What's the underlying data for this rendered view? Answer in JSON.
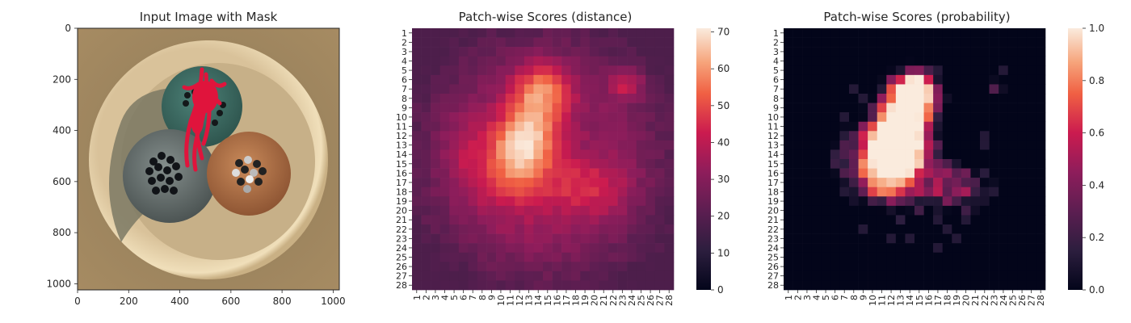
{
  "figure": {
    "panel1_title": "Input Image with Mask",
    "panel2_title": "Patch-wise Scores (distance)",
    "panel3_title": "Patch-wise Scores (probability)"
  },
  "chart_data": [
    {
      "type": "image",
      "title": "Input Image with Mask",
      "xlim": [
        0,
        1024
      ],
      "ylim": [
        1024,
        0
      ],
      "x_ticks": [
        "0",
        "200",
        "400",
        "600",
        "800",
        "1000"
      ],
      "y_ticks": [
        "0",
        "200",
        "400",
        "600",
        "800",
        "1000"
      ],
      "content": "cable cross-section with three wire bundles; red mask over top bundle",
      "colors": {
        "background": "#9c8460",
        "ring_outer": "#ead7b0",
        "ring_shadow": "#7b7964",
        "green_core": "#3f6f66",
        "gray_core": "#6f7a7a",
        "orange_core": "#b8784c",
        "mask": "#e0143c"
      }
    },
    {
      "type": "heatmap",
      "title": "Patch-wise Scores (distance)",
      "rows": 28,
      "cols": 28,
      "x_ticks": [
        "1",
        "2",
        "3",
        "4",
        "5",
        "6",
        "7",
        "8",
        "9",
        "10",
        "11",
        "12",
        "13",
        "14",
        "15",
        "16",
        "17",
        "18",
        "19",
        "20",
        "21",
        "22",
        "23",
        "24",
        "25",
        "26",
        "27",
        "28"
      ],
      "y_ticks": [
        "1",
        "2",
        "3",
        "4",
        "5",
        "6",
        "7",
        "8",
        "9",
        "10",
        "11",
        "12",
        "13",
        "14",
        "15",
        "16",
        "17",
        "18",
        "19",
        "20",
        "21",
        "22",
        "23",
        "24",
        "25",
        "26",
        "27",
        "28"
      ],
      "colorbar": {
        "min": 0,
        "max": 71,
        "ticks": [
          "0",
          "10",
          "20",
          "30",
          "40",
          "50",
          "60",
          "70"
        ],
        "colormap": "rocket"
      },
      "base": 29,
      "blobs": [
        {
          "cx": 12.5,
          "cy": 12.5,
          "sx": 2.3,
          "sy": 3.6,
          "amp": 38,
          "rot": -0.35
        },
        {
          "cx": 14.5,
          "cy": 7.0,
          "sx": 2.2,
          "sy": 2.0,
          "amp": 20,
          "rot": 0
        },
        {
          "cx": 23.5,
          "cy": 6.5,
          "sx": 1.3,
          "sy": 1.2,
          "amp": 18,
          "rot": 0
        },
        {
          "cx": 19.5,
          "cy": 17.5,
          "sx": 3.0,
          "sy": 2.2,
          "amp": 13,
          "rot": 0
        },
        {
          "cx": 13.5,
          "cy": 17.0,
          "sx": 4.5,
          "sy": 4.0,
          "amp": 9,
          "rot": 0
        },
        {
          "cx": 6.5,
          "cy": 14.0,
          "sx": 2.0,
          "sy": 3.0,
          "amp": 8,
          "rot": 0
        }
      ]
    },
    {
      "type": "heatmap",
      "title": "Patch-wise Scores (probability)",
      "rows": 28,
      "cols": 28,
      "x_ticks": [
        "1",
        "2",
        "3",
        "4",
        "5",
        "6",
        "7",
        "8",
        "9",
        "10",
        "11",
        "12",
        "13",
        "14",
        "15",
        "16",
        "17",
        "18",
        "19",
        "20",
        "21",
        "22",
        "23",
        "24",
        "25",
        "26",
        "27",
        "28"
      ],
      "y_ticks": [
        "1",
        "2",
        "3",
        "4",
        "5",
        "6",
        "7",
        "8",
        "9",
        "10",
        "11",
        "12",
        "13",
        "14",
        "15",
        "16",
        "17",
        "18",
        "19",
        "20",
        "21",
        "22",
        "23",
        "24",
        "25",
        "26",
        "27",
        "28"
      ],
      "colorbar": {
        "min": 0.0,
        "max": 1.0,
        "ticks": [
          "0.0",
          "0.2",
          "0.4",
          "0.6",
          "0.8",
          "1.0"
        ],
        "colormap": "rocket"
      },
      "derived_from_distance": {
        "threshold_low": 36,
        "threshold_high": 57
      }
    }
  ]
}
